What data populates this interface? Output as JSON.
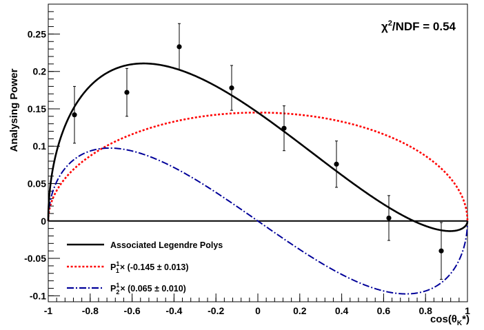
{
  "chart_data": {
    "type": "scatter",
    "title": "",
    "xlabel_parts": [
      "cos(θ",
      "K",
      "*)"
    ],
    "ylabel": "Analysing Power",
    "xlim": [
      -1,
      1
    ],
    "ylim": [
      -0.108,
      0.29
    ],
    "grid": false,
    "x_ticks": [
      "-1",
      "-0.8",
      "-0.6",
      "-0.4",
      "-0.2",
      "0",
      "0.2",
      "0.4",
      "0.6",
      "0.8",
      "1"
    ],
    "y_ticks": [
      "-0.1",
      "-0.05",
      "0",
      "0.05",
      "0.1",
      "0.15",
      "0.2",
      "0.25"
    ],
    "annotation": {
      "label": "χ",
      "sup": "2",
      "rest": "/NDF = 0.54"
    },
    "data_points": {
      "x": [
        -0.875,
        -0.625,
        -0.375,
        -0.125,
        0.125,
        0.375,
        0.625,
        0.875
      ],
      "y": [
        0.142,
        0.172,
        0.233,
        0.178,
        0.124,
        0.076,
        0.004,
        -0.04
      ],
      "yerr": [
        0.038,
        0.032,
        0.031,
        0.03,
        0.03,
        0.031,
        0.03,
        0.038
      ]
    },
    "coefficients": {
      "P11": -0.145,
      "P12": 0.065
    },
    "series": [
      {
        "name": "Associated Legendre Polys",
        "color": "#000000",
        "style": "solid"
      },
      {
        "name": "P11",
        "prefix": "P",
        "sup": "1",
        "sub": "1",
        "value": "× (-0.145 ± 0.013)",
        "color": "#ff0000",
        "style": "dotted"
      },
      {
        "name": "P12",
        "prefix": "P",
        "sup": "1",
        "sub": "2",
        "value": "× (0.065 ± 0.010)",
        "color": "#000099",
        "style": "dash-dot"
      }
    ]
  }
}
